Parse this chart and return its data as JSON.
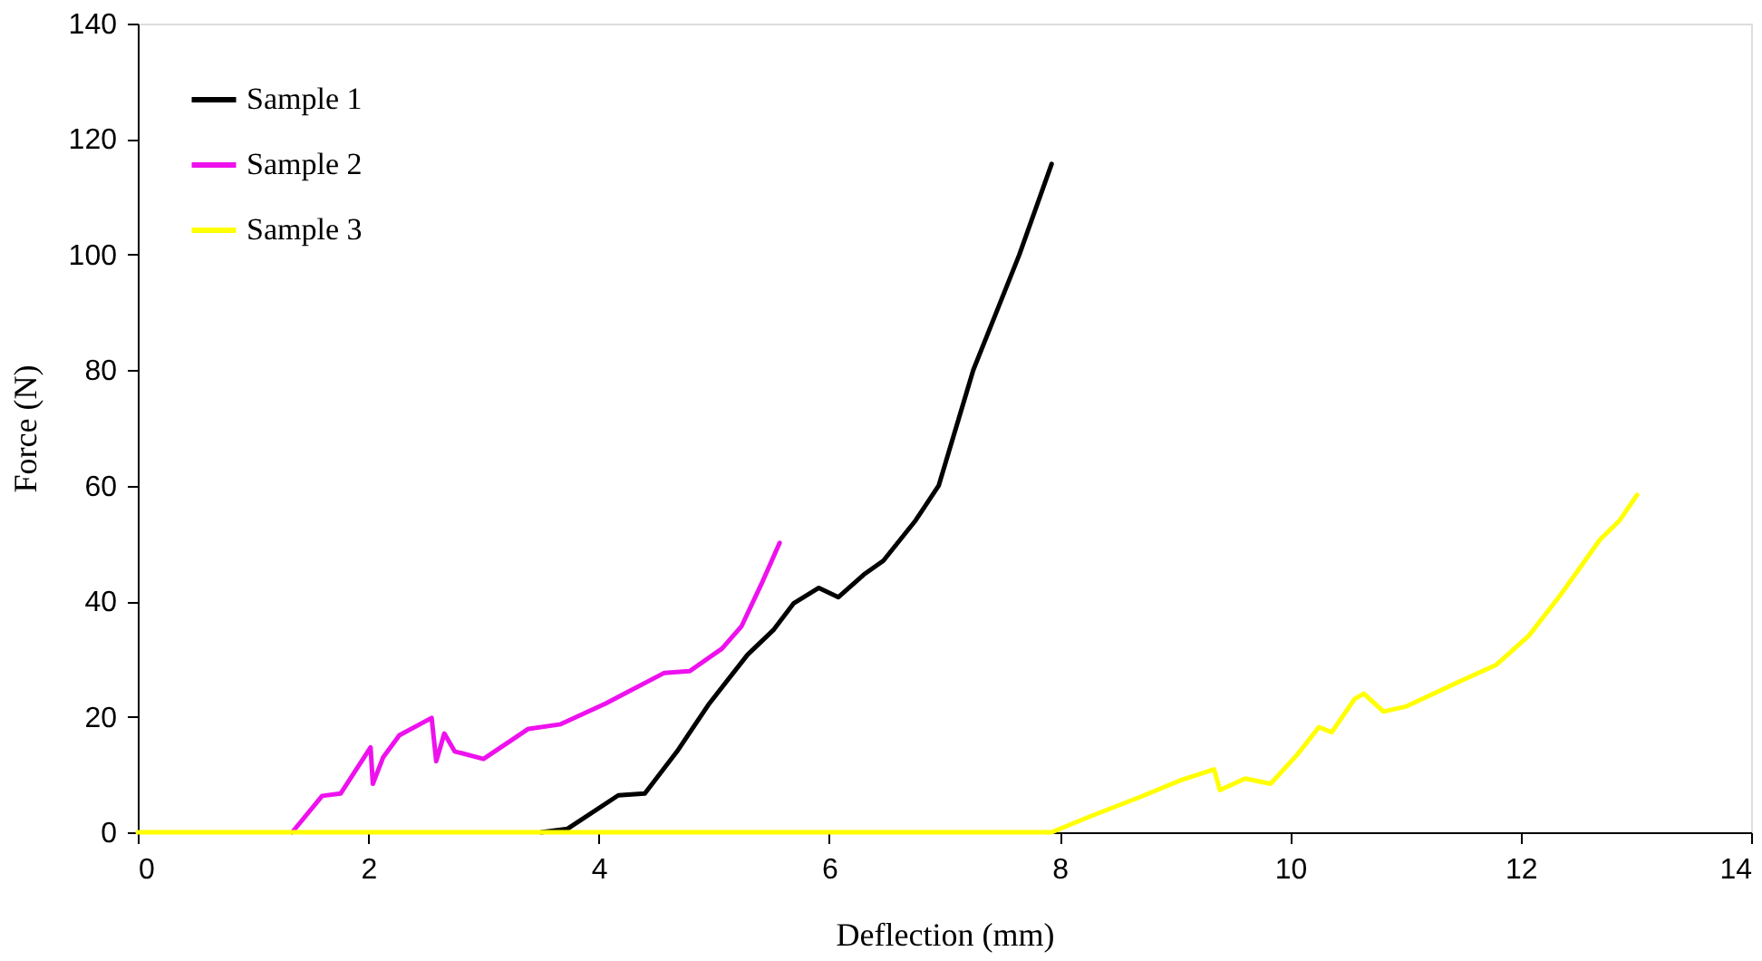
{
  "chart_data": {
    "type": "line",
    "xlabel": "Deflection  (mm)",
    "ylabel": "Force (N)",
    "xlim": [
      0,
      14
    ],
    "xticks": [
      0,
      2,
      4,
      6,
      8,
      10,
      12,
      14
    ],
    "ylim": [
      0,
      140
    ],
    "yticks": [
      0,
      20,
      40,
      60,
      80,
      100,
      120,
      140
    ],
    "grid": false,
    "legend": "top left",
    "marker": "none",
    "line_style": "solid",
    "series": [
      {
        "name": "Sample 1",
        "color": "#000000",
        "x": [
          3.5,
          3.73,
          4.17,
          4.4,
          4.68,
          4.96,
          5.29,
          5.52,
          5.69,
          5.91,
          6.08,
          6.3,
          6.47,
          6.75,
          6.95,
          7.1,
          7.25,
          7.45,
          7.65,
          7.93
        ],
        "values": [
          0,
          0.6,
          6.4,
          6.7,
          14,
          22.3,
          30.7,
          35.1,
          39.6,
          42.3,
          40.7,
          44.6,
          47,
          54,
          60,
          70,
          80,
          90,
          100,
          115.7
        ]
      },
      {
        "name": "Sample 2",
        "color": "#ee11ee",
        "x": [
          1.34,
          1.6,
          1.76,
          2.02,
          2.04,
          2.13,
          2.27,
          2.55,
          2.59,
          2.66,
          2.75,
          3.0,
          3.39,
          3.67,
          4.06,
          4.57,
          4.79,
          5.07,
          5.24,
          5.41,
          5.57
        ],
        "values": [
          0,
          6.3,
          6.7,
          14.7,
          8.4,
          13,
          16.8,
          19.8,
          12.3,
          17.1,
          14,
          12.7,
          17.9,
          18.7,
          22.3,
          27.6,
          27.9,
          31.8,
          35.7,
          42.9,
          50.1
        ]
      },
      {
        "name": "Sample 3",
        "color": "#ffff00",
        "x": [
          0,
          7.93,
          8.26,
          8.71,
          9.05,
          9.34,
          9.39,
          9.61,
          9.83,
          10.06,
          10.25,
          10.36,
          10.56,
          10.64,
          10.81,
          11.01,
          11.46,
          11.79,
          12.07,
          12.35,
          12.69,
          12.86,
          13.01
        ],
        "values": [
          0,
          0,
          2.7,
          6.2,
          9,
          10.9,
          7.3,
          9.3,
          8.4,
          13.4,
          18.2,
          17.3,
          23.1,
          24,
          20.9,
          21.8,
          26,
          29,
          34,
          41.2,
          50.7,
          54,
          58.4
        ]
      }
    ]
  }
}
